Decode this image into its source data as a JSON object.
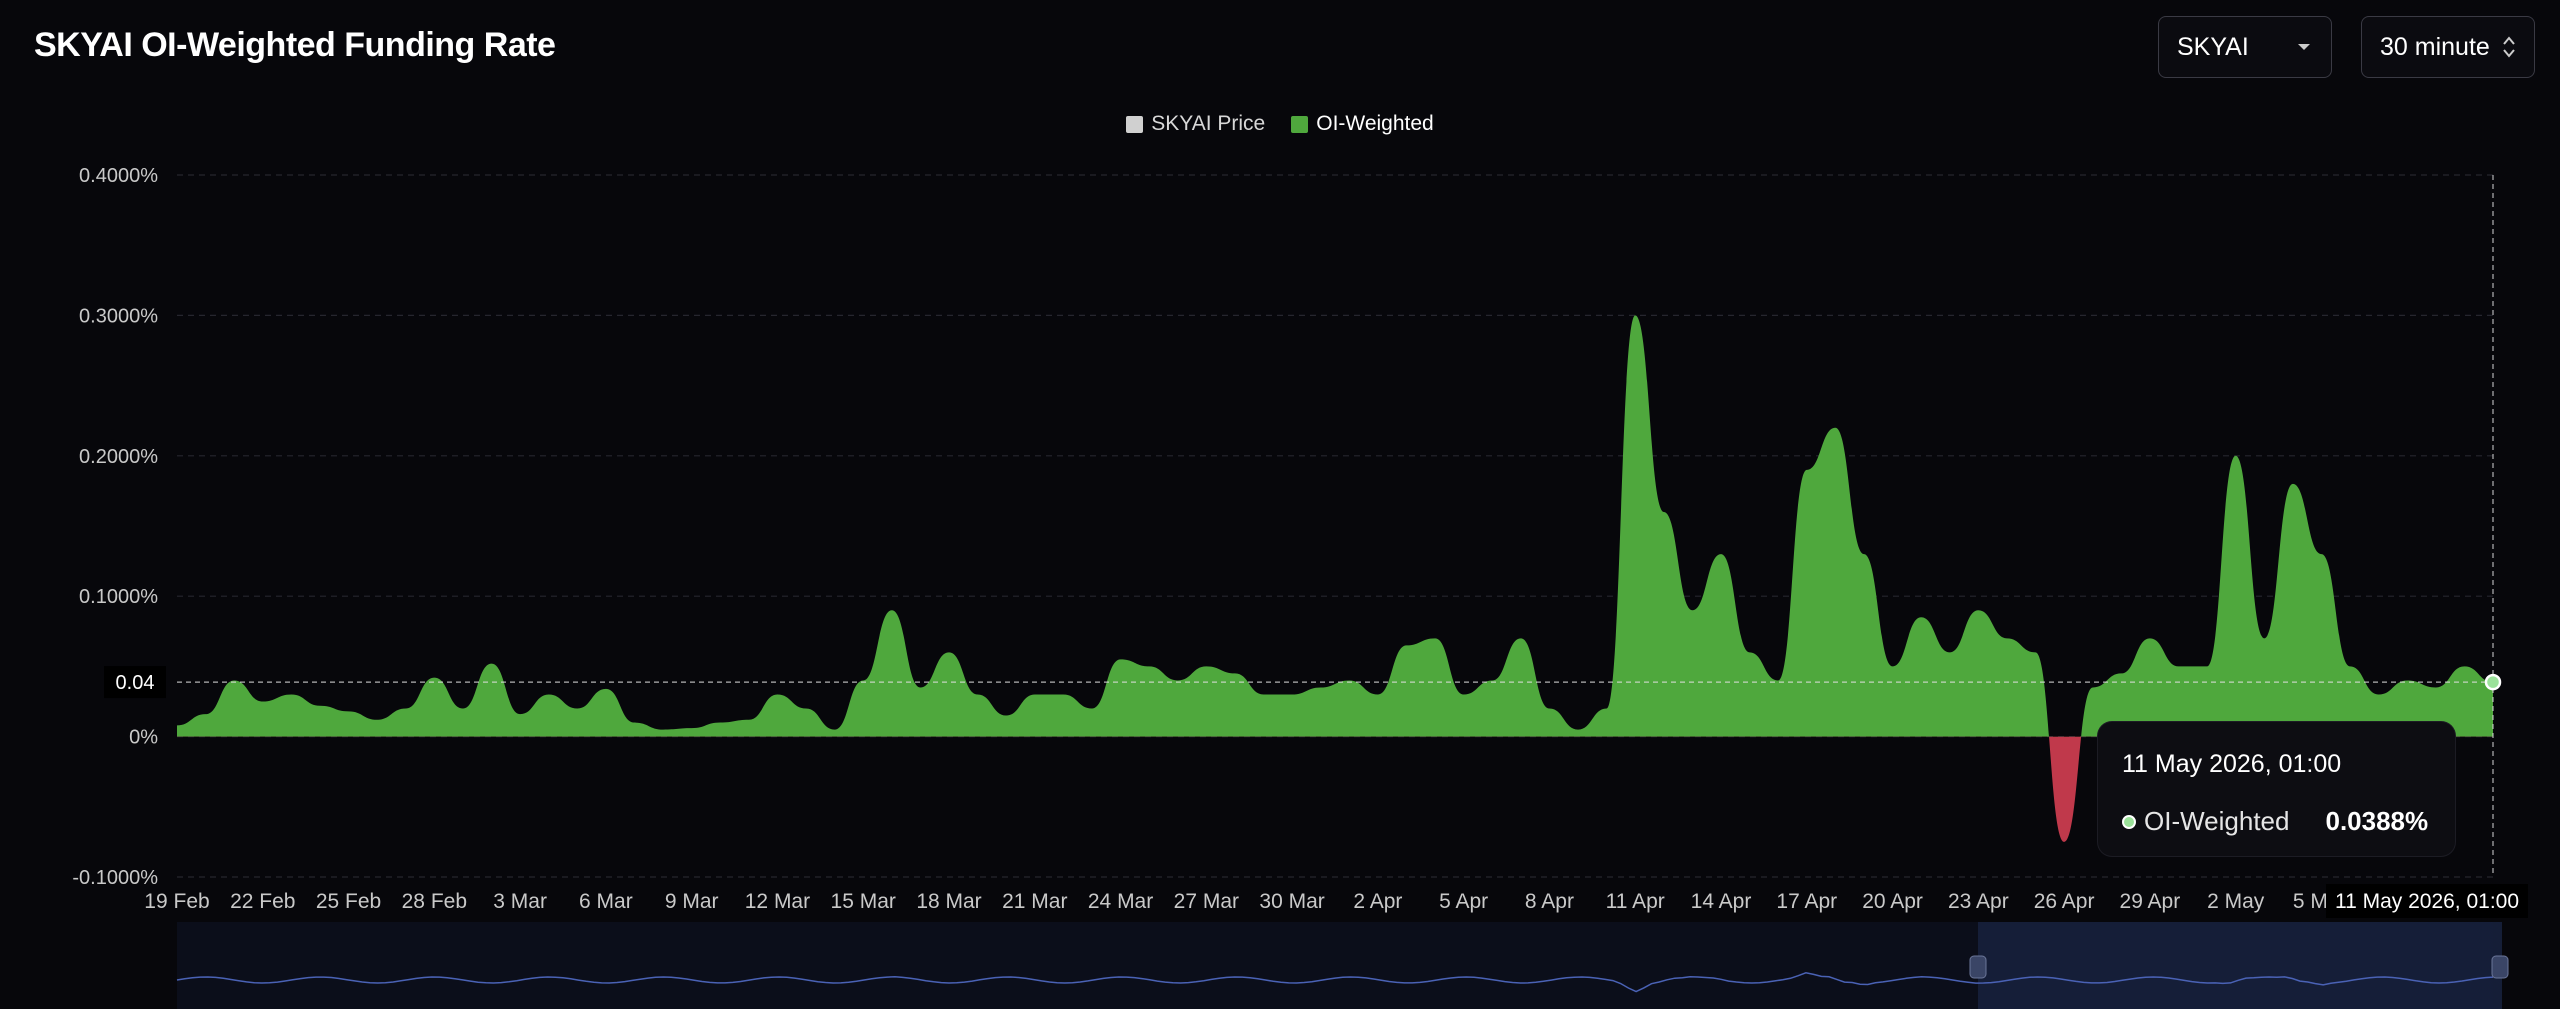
{
  "page_title": "SKYAI OI-Weighted Funding Rate",
  "controls": {
    "symbol": {
      "value": "SKYAI",
      "icon": "chevron-down-icon"
    },
    "interval": {
      "value": "30 minute",
      "icon": "up-down-chevron-icon"
    }
  },
  "legend": [
    {
      "label": "SKYAI Price",
      "color": "#d0d0d0"
    },
    {
      "label": "OI-Weighted",
      "color": "#4fa83d"
    }
  ],
  "tooltip": {
    "date": "11 May 2026, 01:00",
    "series": "OI-Weighted",
    "value": "0.0388%"
  },
  "crosshair": {
    "y_label": "0.04",
    "x_label": "11 May 2026, 01:00"
  },
  "colors": {
    "positive": "#4fa83d",
    "negative": "#c0394b",
    "navigator_line": "#4a62b5"
  },
  "chart_data": {
    "type": "area",
    "title": "SKYAI OI-Weighted Funding Rate",
    "series": [
      {
        "name": "OI-Weighted"
      }
    ],
    "ylim": [
      -0.1,
      0.4
    ],
    "y_ticks": [
      "0.4000%",
      "0.3000%",
      "0.2000%",
      "0.1000%",
      "0%",
      "-0.1000%"
    ],
    "y_tick_values": [
      0.4,
      0.3,
      0.2,
      0.1,
      0,
      -0.1
    ],
    "x_tick_labels": [
      "19 Feb",
      "22 Feb",
      "25 Feb",
      "28 Feb",
      "3 Mar",
      "6 Mar",
      "9 Mar",
      "12 Mar",
      "15 Mar",
      "18 Mar",
      "21 Mar",
      "24 Mar",
      "27 Mar",
      "30 Mar",
      "2 Apr",
      "5 Apr",
      "8 Apr",
      "11 Apr",
      "14 Apr",
      "17 Apr",
      "20 Apr",
      "23 Apr",
      "26 Apr",
      "29 Apr",
      "2 May",
      "5 May"
    ],
    "x_range": [
      "2026-02-19",
      "2026-05-11"
    ],
    "grid": true,
    "legend_position": "top-center",
    "points": [
      [
        "2026-02-19",
        0.008
      ],
      [
        "2026-02-20",
        0.016
      ],
      [
        "2026-02-21",
        0.04
      ],
      [
        "2026-02-22",
        0.025
      ],
      [
        "2026-02-23",
        0.03
      ],
      [
        "2026-02-24",
        0.022
      ],
      [
        "2026-02-25",
        0.018
      ],
      [
        "2026-02-26",
        0.012
      ],
      [
        "2026-02-27",
        0.02
      ],
      [
        "2026-02-28",
        0.042
      ],
      [
        "2026-03-01",
        0.02
      ],
      [
        "2026-03-02",
        0.052
      ],
      [
        "2026-03-03",
        0.016
      ],
      [
        "2026-03-04",
        0.03
      ],
      [
        "2026-03-05",
        0.02
      ],
      [
        "2026-03-06",
        0.034
      ],
      [
        "2026-03-07",
        0.01
      ],
      [
        "2026-03-08",
        0.005
      ],
      [
        "2026-03-09",
        0.006
      ],
      [
        "2026-03-10",
        0.01
      ],
      [
        "2026-03-11",
        0.012
      ],
      [
        "2026-03-12",
        0.03
      ],
      [
        "2026-03-13",
        0.02
      ],
      [
        "2026-03-14",
        0.005
      ],
      [
        "2026-03-15",
        0.04
      ],
      [
        "2026-03-16",
        0.09
      ],
      [
        "2026-03-17",
        0.035
      ],
      [
        "2026-03-18",
        0.06
      ],
      [
        "2026-03-19",
        0.03
      ],
      [
        "2026-03-20",
        0.015
      ],
      [
        "2026-03-21",
        0.03
      ],
      [
        "2026-03-22",
        0.03
      ],
      [
        "2026-03-23",
        0.02
      ],
      [
        "2026-03-24",
        0.055
      ],
      [
        "2026-03-25",
        0.05
      ],
      [
        "2026-03-26",
        0.04
      ],
      [
        "2026-03-27",
        0.05
      ],
      [
        "2026-03-28",
        0.045
      ],
      [
        "2026-03-29",
        0.03
      ],
      [
        "2026-03-30",
        0.03
      ],
      [
        "2026-03-31",
        0.035
      ],
      [
        "2026-04-01",
        0.04
      ],
      [
        "2026-04-02",
        0.03
      ],
      [
        "2026-04-03",
        0.065
      ],
      [
        "2026-04-04",
        0.07
      ],
      [
        "2026-04-05",
        0.03
      ],
      [
        "2026-04-06",
        0.04
      ],
      [
        "2026-04-07",
        0.07
      ],
      [
        "2026-04-08",
        0.02
      ],
      [
        "2026-04-09",
        0.005
      ],
      [
        "2026-04-10",
        0.02
      ],
      [
        "2026-04-11",
        0.3
      ],
      [
        "2026-04-12",
        0.16
      ],
      [
        "2026-04-13",
        0.09
      ],
      [
        "2026-04-14",
        0.13
      ],
      [
        "2026-04-15",
        0.06
      ],
      [
        "2026-04-16",
        0.04
      ],
      [
        "2026-04-17",
        0.19
      ],
      [
        "2026-04-18",
        0.22
      ],
      [
        "2026-04-19",
        0.13
      ],
      [
        "2026-04-20",
        0.05
      ],
      [
        "2026-04-21",
        0.085
      ],
      [
        "2026-04-22",
        0.06
      ],
      [
        "2026-04-23",
        0.09
      ],
      [
        "2026-04-24",
        0.07
      ],
      [
        "2026-04-25",
        0.06
      ],
      [
        "2026-04-26",
        -0.075
      ],
      [
        "2026-04-27",
        0.035
      ],
      [
        "2026-04-28",
        0.045
      ],
      [
        "2026-04-29",
        0.07
      ],
      [
        "2026-04-30",
        0.05
      ],
      [
        "2026-05-01",
        0.05
      ],
      [
        "2026-05-02",
        0.2
      ],
      [
        "2026-05-03",
        0.07
      ],
      [
        "2026-05-04",
        0.18
      ],
      [
        "2026-05-05",
        0.13
      ],
      [
        "2026-05-06",
        0.05
      ],
      [
        "2026-05-07",
        0.03
      ],
      [
        "2026-05-08",
        0.04
      ],
      [
        "2026-05-09",
        0.035
      ],
      [
        "2026-05-10",
        0.05
      ],
      [
        "2026-05-11",
        0.0388
      ]
    ]
  }
}
